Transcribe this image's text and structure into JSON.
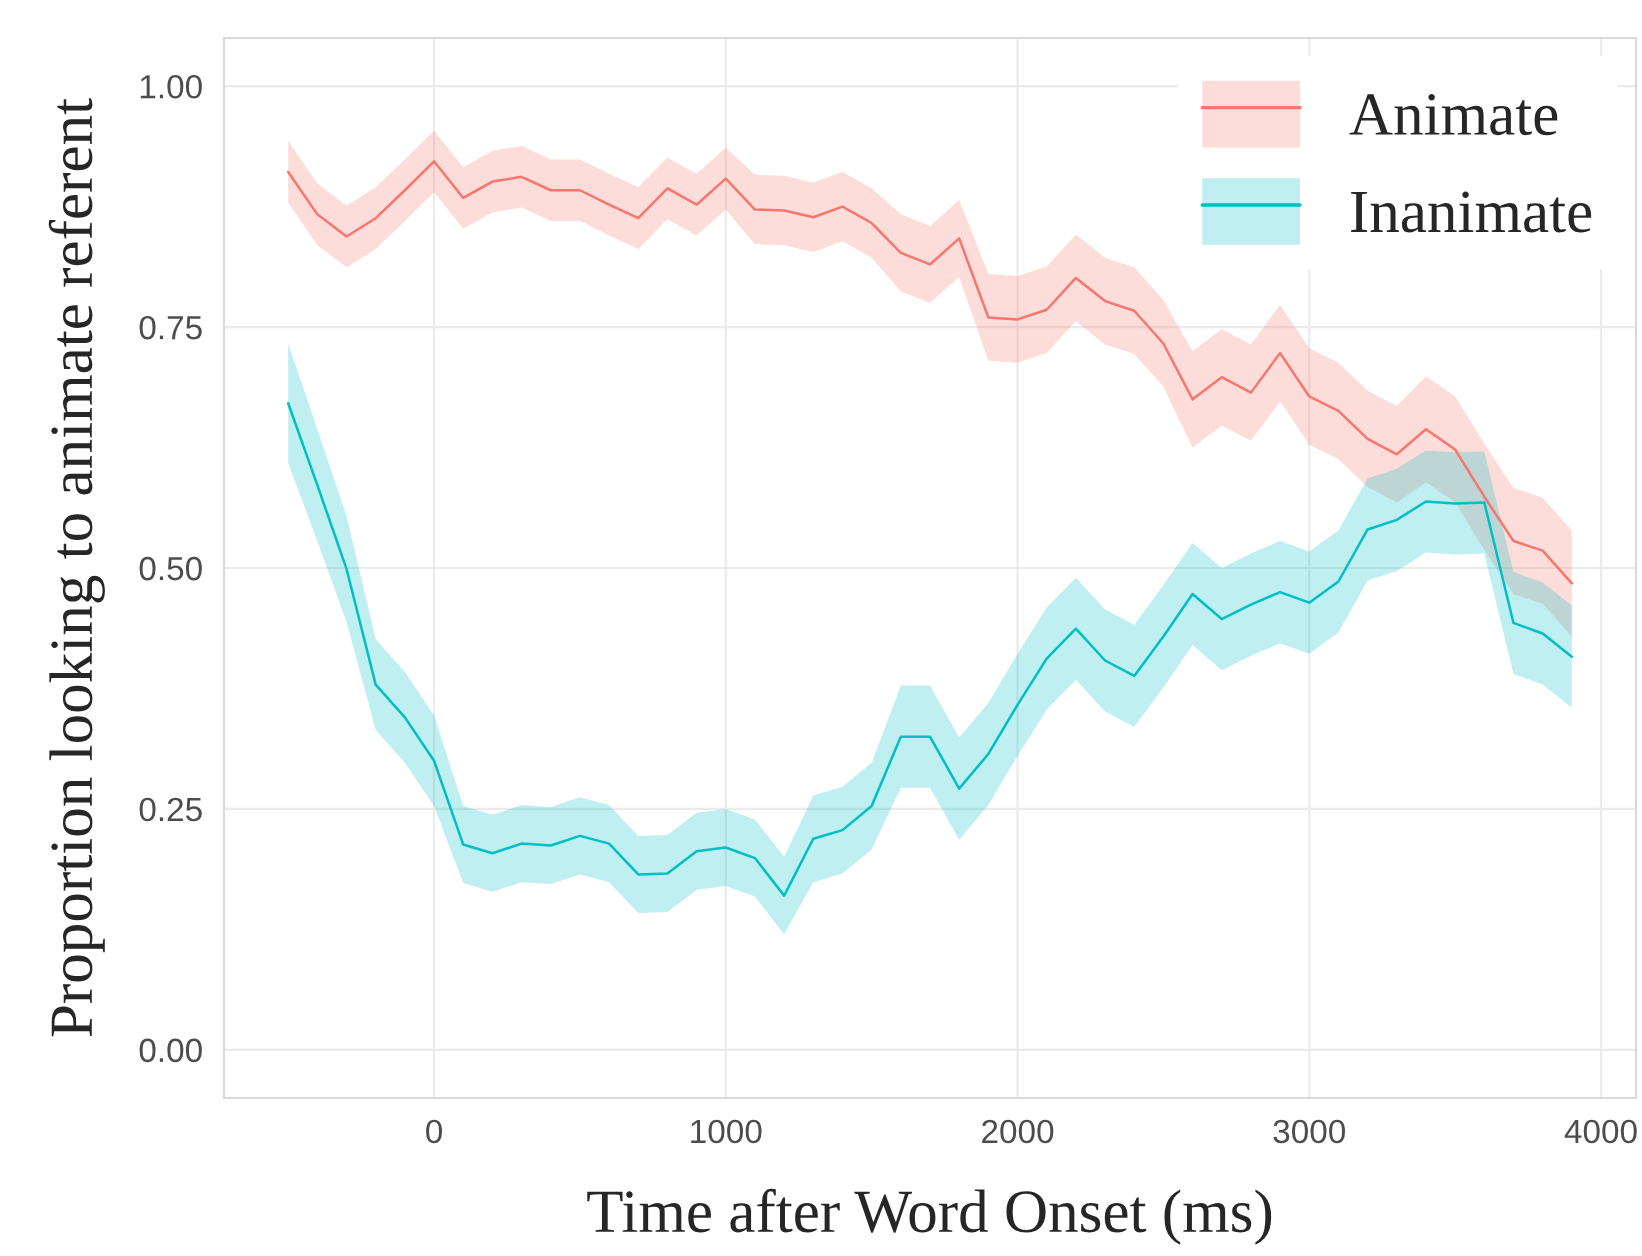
{
  "chart_data": {
    "type": "line",
    "xlabel": "Time after Word Onset (ms)",
    "ylabel": "Proportion looking to animate referent",
    "x": [
      -500,
      -400,
      -300,
      -200,
      -100,
      0,
      100,
      200,
      300,
      400,
      500,
      600,
      700,
      800,
      900,
      1000,
      1100,
      1200,
      1300,
      1400,
      1500,
      1600,
      1700,
      1800,
      1900,
      2000,
      2100,
      2200,
      2300,
      2400,
      2500,
      2600,
      2700,
      2800,
      2900,
      3000,
      3100,
      3200,
      3300,
      3400,
      3500,
      3600,
      3700,
      3800,
      3900
    ],
    "series": [
      {
        "name": "Animate",
        "color": "#f8766d",
        "values": [
          0.911,
          0.867,
          0.844,
          0.863,
          0.892,
          0.922,
          0.884,
          0.901,
          0.906,
          0.892,
          0.892,
          0.877,
          0.863,
          0.894,
          0.877,
          0.904,
          0.872,
          0.871,
          0.864,
          0.875,
          0.858,
          0.827,
          0.815,
          0.842,
          0.76,
          0.758,
          0.768,
          0.801,
          0.777,
          0.767,
          0.733,
          0.675,
          0.698,
          0.682,
          0.723,
          0.678,
          0.663,
          0.634,
          0.618,
          0.644,
          0.623,
          0.574,
          0.528,
          0.518,
          0.484
        ],
        "lower": [
          0.879,
          0.835,
          0.812,
          0.831,
          0.86,
          0.89,
          0.852,
          0.869,
          0.874,
          0.86,
          0.86,
          0.845,
          0.831,
          0.862,
          0.845,
          0.872,
          0.836,
          0.835,
          0.828,
          0.839,
          0.822,
          0.787,
          0.775,
          0.802,
          0.715,
          0.713,
          0.723,
          0.756,
          0.732,
          0.722,
          0.688,
          0.625,
          0.648,
          0.632,
          0.673,
          0.628,
          0.613,
          0.584,
          0.568,
          0.589,
          0.568,
          0.519,
          0.473,
          0.463,
          0.429
        ],
        "upper": [
          0.943,
          0.899,
          0.876,
          0.895,
          0.924,
          0.954,
          0.916,
          0.933,
          0.938,
          0.924,
          0.924,
          0.909,
          0.895,
          0.926,
          0.909,
          0.936,
          0.908,
          0.907,
          0.9,
          0.911,
          0.894,
          0.867,
          0.855,
          0.882,
          0.805,
          0.803,
          0.813,
          0.846,
          0.822,
          0.812,
          0.778,
          0.725,
          0.748,
          0.732,
          0.773,
          0.728,
          0.713,
          0.684,
          0.668,
          0.699,
          0.678,
          0.629,
          0.583,
          0.573,
          0.539
        ]
      },
      {
        "name": "Inanimate",
        "color": "#00bfc4",
        "values": [
          0.671,
          0.586,
          0.499,
          0.379,
          0.345,
          0.3,
          0.213,
          0.204,
          0.214,
          0.212,
          0.222,
          0.214,
          0.182,
          0.183,
          0.206,
          0.21,
          0.199,
          0.16,
          0.219,
          0.228,
          0.253,
          0.325,
          0.325,
          0.271,
          0.307,
          0.358,
          0.406,
          0.437,
          0.404,
          0.388,
          0.429,
          0.473,
          0.447,
          0.462,
          0.475,
          0.464,
          0.486,
          0.54,
          0.55,
          0.569,
          0.567,
          0.568,
          0.443,
          0.432,
          0.408
        ],
        "lower": [
          0.609,
          0.528,
          0.444,
          0.332,
          0.298,
          0.253,
          0.173,
          0.164,
          0.174,
          0.172,
          0.182,
          0.174,
          0.142,
          0.143,
          0.166,
          0.17,
          0.159,
          0.12,
          0.174,
          0.183,
          0.208,
          0.272,
          0.272,
          0.218,
          0.254,
          0.305,
          0.353,
          0.384,
          0.351,
          0.335,
          0.376,
          0.42,
          0.394,
          0.409,
          0.422,
          0.411,
          0.433,
          0.487,
          0.497,
          0.516,
          0.514,
          0.515,
          0.39,
          0.379,
          0.355
        ],
        "upper": [
          0.733,
          0.644,
          0.554,
          0.426,
          0.392,
          0.347,
          0.253,
          0.244,
          0.254,
          0.252,
          0.262,
          0.254,
          0.222,
          0.223,
          0.246,
          0.25,
          0.239,
          0.2,
          0.264,
          0.273,
          0.298,
          0.378,
          0.378,
          0.324,
          0.36,
          0.411,
          0.459,
          0.49,
          0.457,
          0.441,
          0.482,
          0.526,
          0.5,
          0.515,
          0.528,
          0.517,
          0.539,
          0.593,
          0.603,
          0.622,
          0.62,
          0.621,
          0.496,
          0.485,
          0.461
        ]
      }
    ],
    "xlim": [
      -720,
      4120
    ],
    "xticks": [
      0,
      1000,
      2000,
      3000,
      4000
    ],
    "ylim": [
      -0.05,
      1.05
    ],
    "yticks": [
      {
        "value": 0,
        "label": "0.00"
      },
      {
        "value": 0.25,
        "label": "0.25"
      },
      {
        "value": 0.5,
        "label": "0.50"
      },
      {
        "value": 0.75,
        "label": "0.75"
      },
      {
        "value": 1,
        "label": "1.00"
      }
    ],
    "grid": true,
    "legend": "top right",
    "line_style": "solid",
    "marker": "none"
  }
}
